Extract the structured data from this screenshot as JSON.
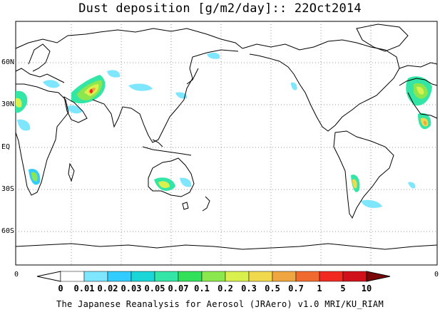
{
  "title": "Dust deposition [g/m2/day]:: 22Oct2014",
  "lat_labels": [
    "60N",
    "30N",
    "EQ",
    "30S",
    "60S"
  ],
  "axis_zero_left": "0",
  "axis_zero_right": "0",
  "colorbar": {
    "labels": [
      "0",
      "0.01",
      "0.02",
      "0.03",
      "0.05",
      "0.07",
      "0.1",
      "0.2",
      "0.3",
      "0.5",
      "0.7",
      "1",
      "5",
      "10"
    ],
    "colors": [
      "#ffffff",
      "#7fe6ff",
      "#33ccff",
      "#1ad6d6",
      "#33e6a6",
      "#33e05a",
      "#8ce64d",
      "#d9f04d",
      "#f0d94d",
      "#f0a640",
      "#f06a30",
      "#f02a20",
      "#d0101a",
      "#a00a10",
      "#7a0808"
    ]
  },
  "footer": "The Japanese Reanalysis for Aerosol (JRAero) v1.0 MRI/KU_RIAM"
}
